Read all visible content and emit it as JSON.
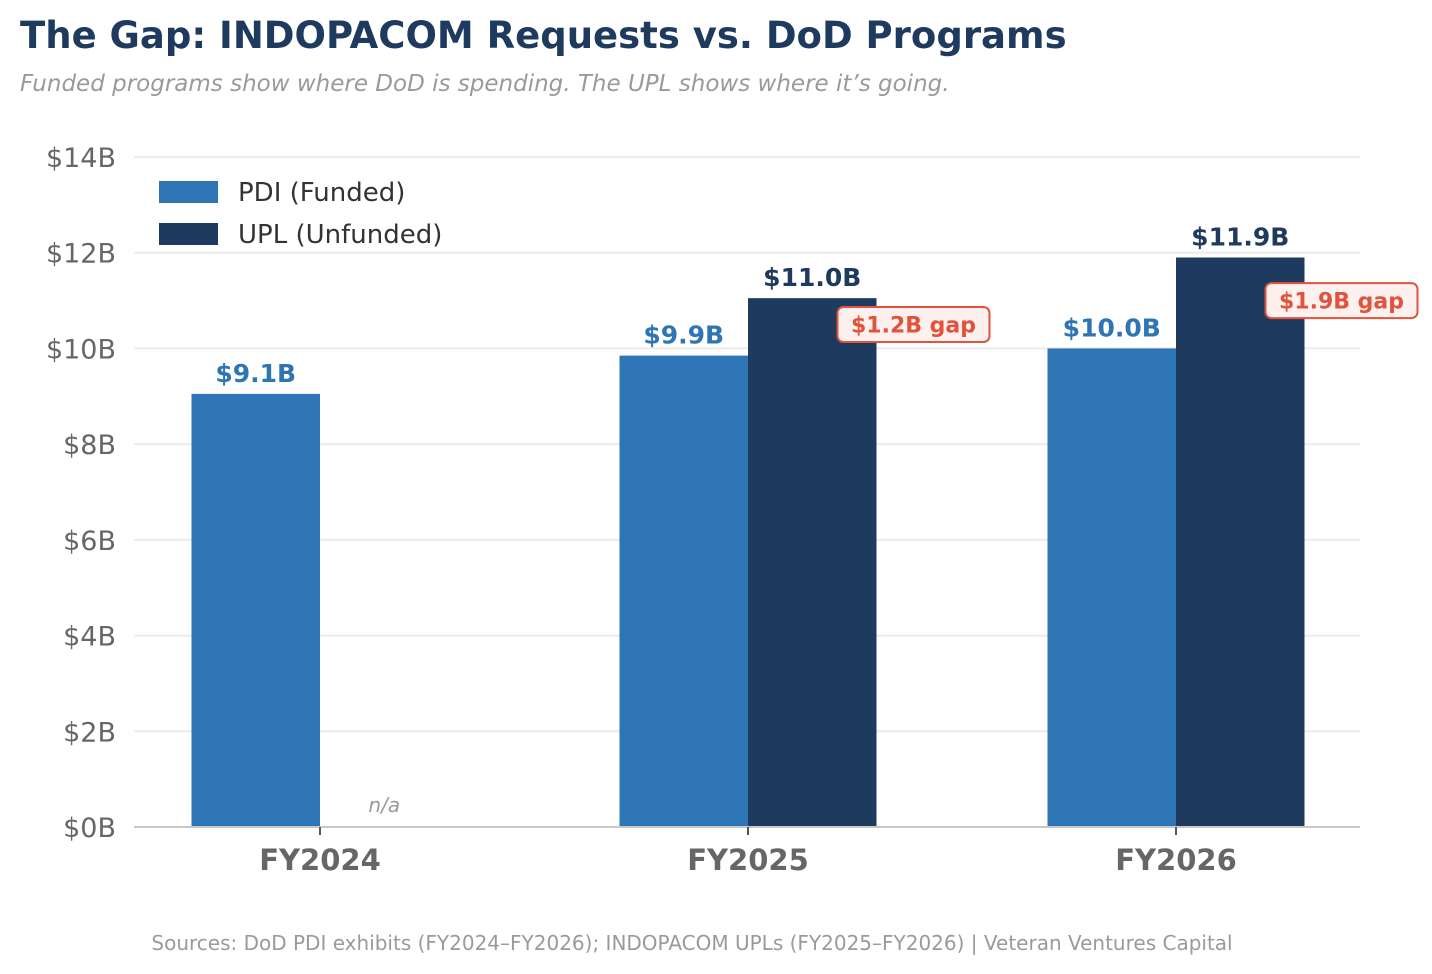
{
  "chart_data": {
    "type": "bar",
    "title": "The Gap: INDOPACOM Requests vs. DoD Programs",
    "subtitle": "Funded programs show where DoD is spending. The UPL shows where it’s going.",
    "xlabel": "",
    "ylabel": "",
    "ylim": [
      0,
      14
    ],
    "yticks": [
      0,
      2,
      4,
      6,
      8,
      10,
      12,
      14
    ],
    "ytick_labels": [
      "$0B",
      "$2B",
      "$4B",
      "$6B",
      "$8B",
      "$10B",
      "$12B",
      "$14B"
    ],
    "grid": true,
    "legend_position": "top-left",
    "categories": [
      "FY2024",
      "FY2025",
      "FY2026"
    ],
    "series": [
      {
        "name": "PDI (Funded)",
        "color": "#2e75b6",
        "values": [
          9.05,
          9.85,
          10.0
        ],
        "labels": [
          "$9.1B",
          "$9.9B",
          "$10.0B"
        ]
      },
      {
        "name": "UPL (Unfunded)",
        "color": "#1e3a5f",
        "values": [
          null,
          11.05,
          11.9
        ],
        "labels": [
          "n/a",
          "$11.0B",
          "$11.9B"
        ]
      }
    ],
    "annotations": [
      {
        "category": "FY2025",
        "text": "$1.2B gap",
        "color": "#e0533d",
        "anchor_value": 10.5
      },
      {
        "category": "FY2026",
        "text": "$1.9B gap",
        "color": "#e0533d",
        "anchor_value": 11.0
      }
    ],
    "source": "Sources: DoD PDI exhibits (FY2024–FY2026); INDOPACOM UPLs (FY2025–FY2026)  |  Veteran Ventures Capital"
  }
}
